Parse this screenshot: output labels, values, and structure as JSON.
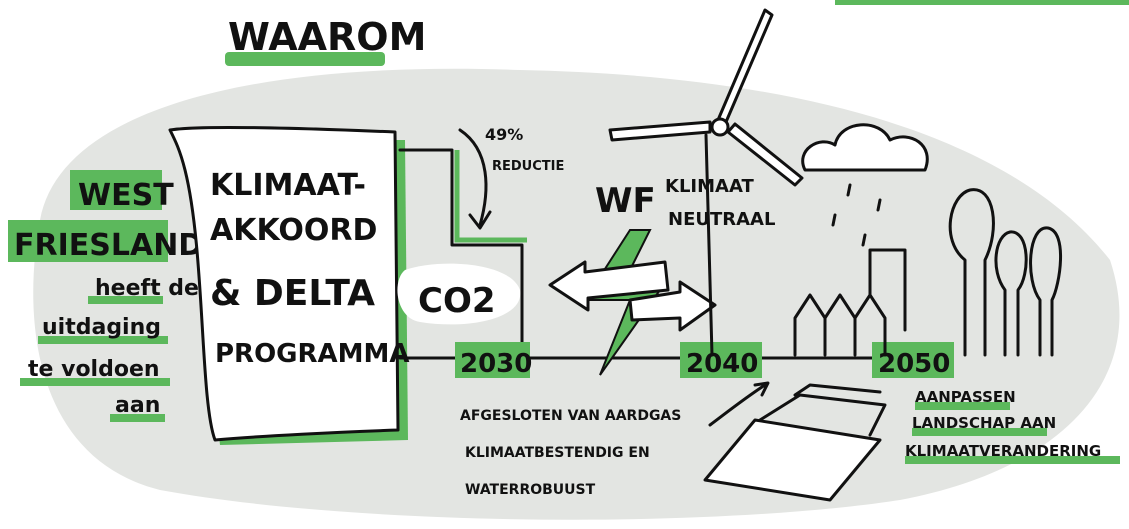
{
  "title": "WAAROM",
  "region": {
    "lines": [
      "WEST",
      "FRIESLAND"
    ]
  },
  "challenge": {
    "lines": [
      "heeft de",
      "uitdaging",
      "te voldoen",
      "aan"
    ]
  },
  "agreement": {
    "lines": [
      "KLIMAAT-",
      "AKKOORD",
      "& DELTA",
      "PROGRAMMA"
    ]
  },
  "reduction": {
    "amount": "49%",
    "label": "REDUCTIE"
  },
  "co2": "CO2",
  "neutral": {
    "abbr": "WF",
    "lines": [
      "KLIMAAT",
      "NEUTRAAL"
    ]
  },
  "timeline": {
    "years": [
      "2030",
      "2040",
      "2050"
    ]
  },
  "goals_2040": {
    "lines": [
      "AFGESLOTEN VAN AARDGAS",
      "KLIMAATBESTENDIG EN",
      "WATERROBUUST"
    ]
  },
  "goals_2050": {
    "lines": [
      "AANPASSEN",
      "LANDSCHAP AAN",
      "KLIMAATVERANDERING"
    ]
  }
}
